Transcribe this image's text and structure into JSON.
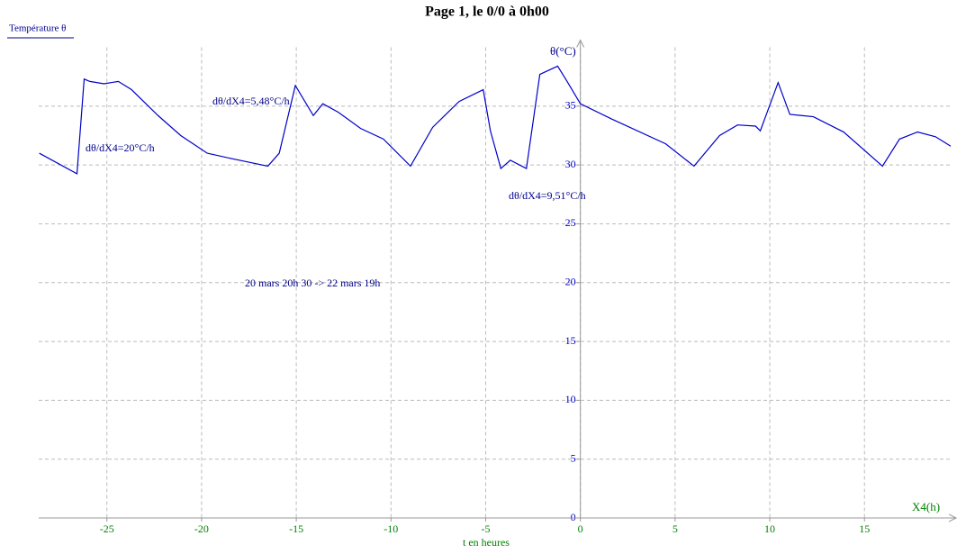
{
  "chart_data": {
    "type": "line",
    "title": "Page 1, le 0/0 à 0h00",
    "xlabel": "t en heures",
    "xaxis_name": "X4(h)",
    "ylabel": "θ(°C)",
    "annotations": [
      "dθ/dX4=20°C/h",
      "dθ/dX4=5,48°C/h",
      "dθ/dX4=9,51°C/h",
      "20 mars 20h 30 -> 22 mars 19h"
    ],
    "xlim": [
      -28.6,
      19.6
    ],
    "ylim": [
      0,
      40
    ],
    "xticks": [
      -25,
      -20,
      -15,
      -10,
      -5,
      0,
      5,
      10,
      15
    ],
    "yticks": [
      0,
      5,
      10,
      15,
      20,
      25,
      30,
      35
    ],
    "grid": true,
    "series": [
      {
        "name": "Température θ",
        "color": "#0000c8",
        "x": [
          -28.57,
          -26.58,
          -26.2,
          -25.9,
          -25.15,
          -24.4,
          -23.7,
          -22.3,
          -21.1,
          -19.7,
          -18.3,
          -16.5,
          -15.9,
          -15.05,
          -14.1,
          -13.6,
          -12.8,
          -11.6,
          -10.4,
          -8.97,
          -7.8,
          -6.4,
          -5.13,
          -4.75,
          -4.2,
          -3.7,
          -2.85,
          -2.14,
          -1.2,
          -0.7,
          0,
          1.66,
          4.5,
          6.0,
          7.35,
          8.3,
          9.25,
          9.5,
          10.44,
          11.06,
          12.3,
          13.9,
          15.95,
          16.85,
          17.8,
          18.75,
          19.55
        ],
        "values": [
          31.0,
          29.25,
          37.3,
          37.1,
          36.9,
          37.1,
          36.4,
          34.2,
          32.5,
          31.0,
          30.5,
          29.9,
          31.0,
          36.75,
          34.2,
          35.2,
          34.5,
          33.1,
          32.2,
          29.9,
          33.2,
          35.4,
          36.4,
          32.9,
          29.7,
          30.4,
          29.7,
          37.7,
          38.4,
          37.1,
          35.2,
          33.9,
          31.8,
          29.9,
          32.5,
          33.4,
          33.3,
          32.9,
          37.0,
          34.3,
          34.1,
          32.8,
          29.9,
          32.2,
          32.8,
          32.4,
          31.6
        ]
      }
    ]
  }
}
